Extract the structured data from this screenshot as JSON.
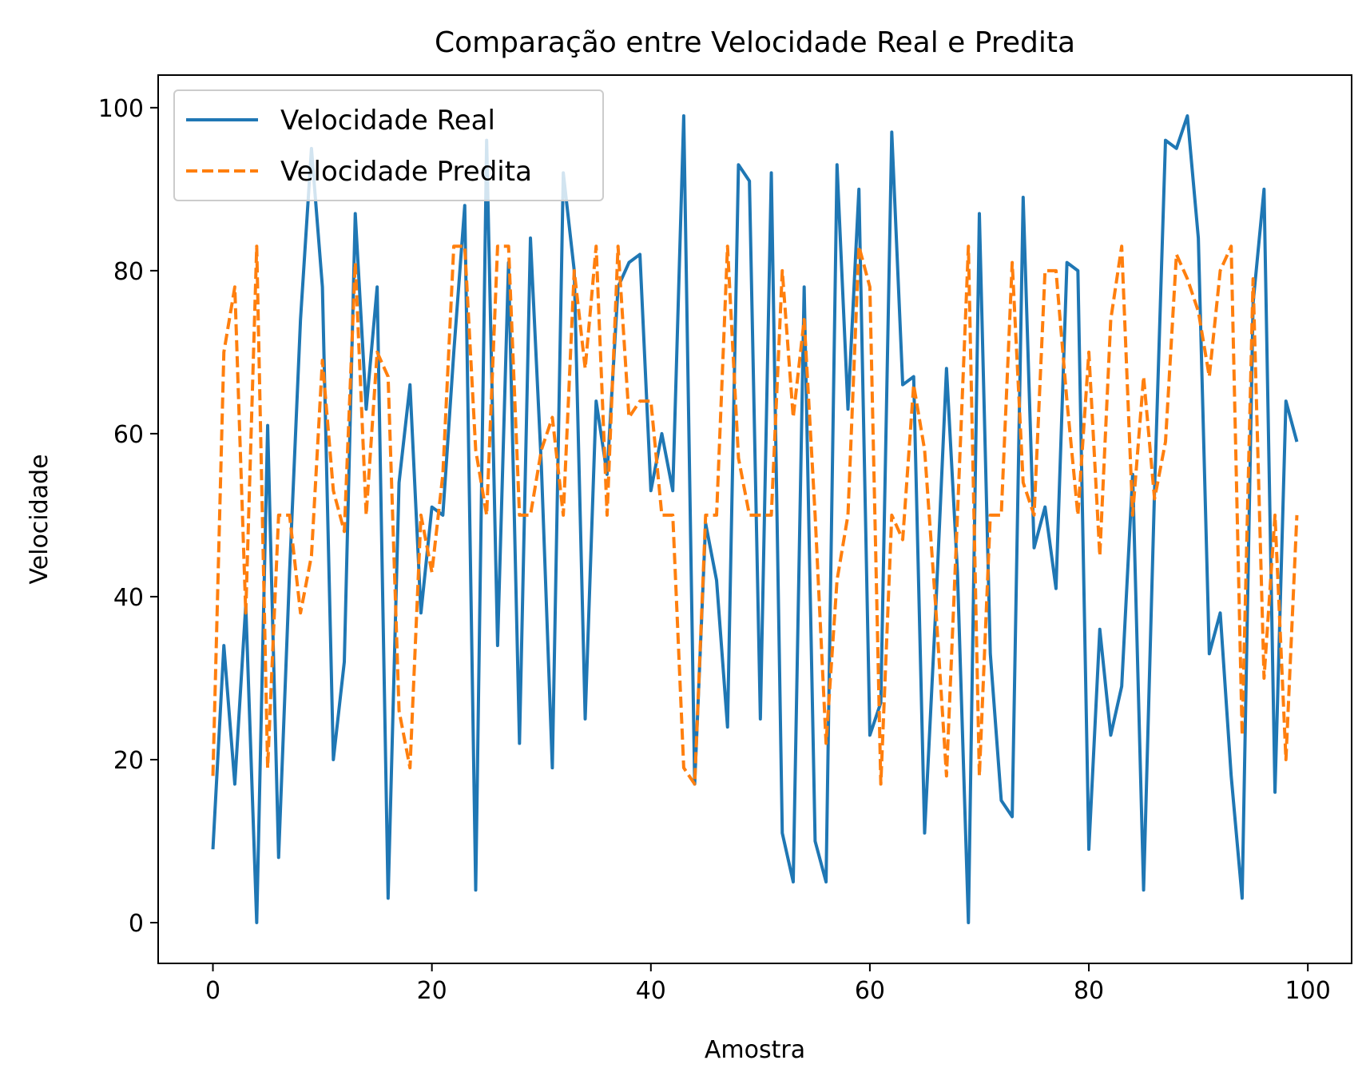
{
  "chart_data": {
    "type": "line",
    "title": "Comparação entre Velocidade Real e Predita",
    "xlabel": "Amostra",
    "ylabel": "Velocidade",
    "xlim": [
      -5,
      104
    ],
    "ylim": [
      -5,
      104
    ],
    "xticks": [
      0,
      20,
      40,
      60,
      80,
      100
    ],
    "yticks": [
      0,
      20,
      40,
      60,
      80,
      100
    ],
    "grid": false,
    "legend_position": "top-left",
    "x": [
      0,
      1,
      2,
      3,
      4,
      5,
      6,
      7,
      8,
      9,
      10,
      11,
      12,
      13,
      14,
      15,
      16,
      17,
      18,
      19,
      20,
      21,
      22,
      23,
      24,
      25,
      26,
      27,
      28,
      29,
      30,
      31,
      32,
      33,
      34,
      35,
      36,
      37,
      38,
      39,
      40,
      41,
      42,
      43,
      44,
      45,
      46,
      47,
      48,
      49,
      50,
      51,
      52,
      53,
      54,
      55,
      56,
      57,
      58,
      59,
      60,
      61,
      62,
      63,
      64,
      65,
      66,
      67,
      68,
      69,
      70,
      71,
      72,
      73,
      74,
      75,
      76,
      77,
      78,
      79,
      80,
      81,
      82,
      83,
      84,
      85,
      86,
      87,
      88,
      89,
      90,
      91,
      92,
      93,
      94,
      95,
      96,
      97,
      98,
      99
    ],
    "series": [
      {
        "name": "Velocidade Real",
        "color": "#1f77b4",
        "style": "solid",
        "values": [
          9,
          34,
          17,
          39,
          0,
          61,
          8,
          43,
          74,
          95,
          78,
          20,
          32,
          87,
          63,
          78,
          3,
          54,
          66,
          38,
          51,
          50,
          70,
          88,
          4,
          96,
          34,
          81,
          22,
          84,
          56,
          19,
          92,
          80,
          25,
          64,
          55,
          78,
          81,
          82,
          53,
          60,
          53,
          99,
          17,
          49,
          42,
          24,
          93,
          91,
          25,
          92,
          11,
          5,
          78,
          10,
          5,
          93,
          63,
          90,
          23,
          27,
          97,
          66,
          67,
          11,
          38,
          68,
          43,
          0,
          87,
          33,
          15,
          13,
          89,
          46,
          51,
          41,
          81,
          80,
          9,
          36,
          23,
          29,
          55,
          4,
          53,
          96,
          95,
          99,
          84,
          33,
          38,
          18,
          3,
          76,
          90,
          16,
          64,
          59
        ]
      },
      {
        "name": "Velocidade Predita",
        "color": "#ff7f0e",
        "style": "dashed",
        "values": [
          18,
          70,
          78,
          38,
          83,
          19,
          50,
          50,
          38,
          45,
          69,
          53,
          48,
          81,
          50,
          70,
          67,
          26,
          19,
          50,
          43,
          55,
          83,
          83,
          58,
          50,
          83,
          83,
          50,
          50,
          58,
          62,
          50,
          80,
          68,
          83,
          50,
          83,
          62,
          64,
          64,
          50,
          50,
          19,
          17,
          50,
          50,
          83,
          57,
          50,
          50,
          50,
          80,
          62,
          74,
          50,
          22,
          42,
          50,
          83,
          78,
          17,
          50,
          47,
          66,
          58,
          39,
          18,
          50,
          83,
          18,
          50,
          50,
          81,
          54,
          50,
          80,
          80,
          64,
          50,
          70,
          45,
          74,
          83,
          50,
          67,
          52,
          59,
          82,
          79,
          75,
          67,
          80,
          83,
          23,
          79,
          30,
          50,
          20,
          50
        ]
      }
    ]
  }
}
